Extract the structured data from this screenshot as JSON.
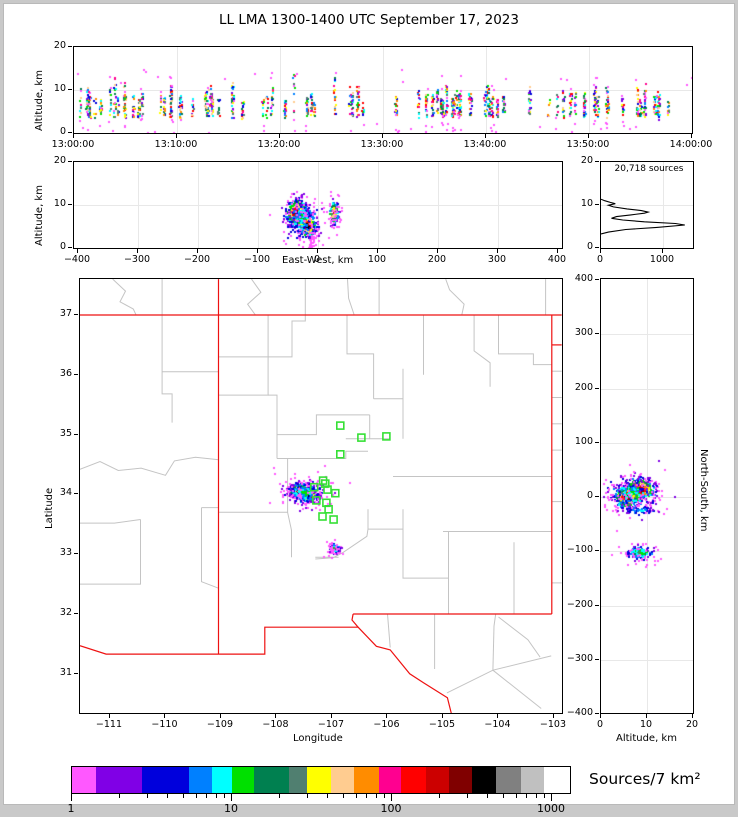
{
  "title": "LL LMA 1300-1400 UTC September 17, 2023",
  "axis_labels": {
    "alt": "Altitude, km",
    "ew": "East-West, km",
    "lat": "Latitude",
    "lon": "Longitude",
    "ns": "North-South, km"
  },
  "palette": [
    "#ff58ff",
    "#8000e6",
    "#0000dc",
    "#0080ff",
    "#00ffff",
    "#00e000",
    "#008050",
    "#507f70",
    "#ffff00",
    "#ffcc90",
    "#ff8c00",
    "#ff0090",
    "#ff0000",
    "#cc0000",
    "#800000",
    "#000000",
    "#808080",
    "#c0c0c0",
    "#ffffff"
  ],
  "colorbar": {
    "label": "Sources/7 km²",
    "tick_labels": [
      "1",
      "10",
      "100",
      "1000"
    ],
    "segment_widths": [
      24,
      46,
      47,
      23,
      20,
      22,
      35,
      18,
      24,
      23,
      25,
      22,
      25,
      23,
      23,
      24,
      25,
      23,
      25
    ],
    "log_range": [
      1,
      1290
    ]
  },
  "panels": {
    "time_height": {
      "xtick_labels": [
        "13:00:00",
        "13:10:00",
        "13:20:00",
        "13:30:00",
        "13:40:00",
        "13:50:00",
        "14:00:00"
      ],
      "ytick_labels": [
        "0",
        "10",
        "20"
      ],
      "ylim": [
        0,
        20
      ],
      "x_seconds": [
        0,
        3600
      ]
    },
    "east_west": {
      "xtick_labels": [
        "−400",
        "−300",
        "−200",
        "−100",
        "0",
        "100",
        "200",
        "300",
        "400"
      ],
      "xticks": [
        -400,
        -300,
        -200,
        -100,
        0,
        100,
        200,
        300,
        400
      ],
      "ytick_labels": [
        "0",
        "10",
        "20"
      ],
      "ylim": [
        0,
        20
      ]
    },
    "histogram": {
      "annotation": "20,718 sources",
      "xtick_labels": [
        "0",
        "1000"
      ],
      "xticks": [
        0,
        1000
      ],
      "ytick_labels": [
        "0",
        "10",
        "20"
      ]
    },
    "map": {
      "xtick_labels": [
        "−111",
        "−110",
        "−109",
        "−108",
        "−107",
        "−106",
        "−105",
        "−104",
        "−103"
      ],
      "xticks": [
        -111,
        -110,
        -109,
        -108,
        -107,
        -106,
        -105,
        -104,
        -103
      ],
      "ytick_labels": [
        "37",
        "36",
        "35",
        "34",
        "33",
        "32",
        "31"
      ],
      "yticks": [
        37,
        36,
        35,
        34,
        33,
        32,
        31
      ],
      "lon_range": [
        -111.54,
        -102.855
      ],
      "lat_range": [
        30.34,
        37.6
      ]
    },
    "north_south": {
      "ytick_labels": [
        "400",
        "300",
        "200",
        "100",
        "0",
        "−100",
        "−200",
        "−300",
        "−400"
      ],
      "yticks": [
        400,
        300,
        200,
        100,
        0,
        -100,
        -200,
        -300,
        -400
      ],
      "xtick_labels": [
        "0",
        "10",
        "20"
      ],
      "xticks": [
        0,
        10,
        20
      ],
      "ylim": [
        -400,
        400
      ]
    }
  },
  "map_layers": {
    "border_color": "#ee1111",
    "county_color": "#c4c4c4",
    "station_color": "#35e035",
    "stations": [
      [
        -106.85,
        35.15
      ],
      [
        -106.47,
        34.95
      ],
      [
        -106.02,
        34.97
      ],
      [
        -106.85,
        34.67
      ],
      [
        -107.16,
        34.23
      ],
      [
        -107.12,
        34.18
      ],
      [
        -107.32,
        34.12
      ],
      [
        -107.08,
        34.08
      ],
      [
        -106.94,
        34.02
      ],
      [
        -107.28,
        33.9
      ],
      [
        -107.1,
        33.86
      ],
      [
        -107.06,
        33.75
      ],
      [
        -107.17,
        33.63
      ],
      [
        -106.97,
        33.58
      ]
    ],
    "state_borders": [
      [
        [
          -109.045,
          37.6
        ],
        [
          -109.045,
          31.33
        ]
      ],
      [
        [
          -111.54,
          37.0
        ],
        [
          -102.86,
          37.0
        ]
      ],
      [
        [
          -103.04,
          37.0
        ],
        [
          -103.04,
          32.0
        ]
      ],
      [
        [
          -103.04,
          36.5
        ],
        [
          -102.86,
          36.5
        ]
      ],
      [
        [
          -103.04,
          32.0
        ],
        [
          -106.62,
          32.0
        ]
      ],
      [
        [
          -106.62,
          32.0
        ],
        [
          -106.64,
          31.9
        ],
        [
          -106.53,
          31.78
        ],
        [
          -108.21,
          31.78
        ],
        [
          -108.21,
          31.33
        ],
        [
          -109.045,
          31.33
        ],
        [
          -111.07,
          31.33
        ],
        [
          -111.54,
          31.47
        ]
      ],
      [
        [
          -106.53,
          31.78
        ],
        [
          -106.2,
          31.46
        ],
        [
          -105.95,
          31.4
        ],
        [
          -105.6,
          31.0
        ],
        [
          -105.35,
          30.85
        ],
        [
          -104.92,
          30.6
        ],
        [
          -104.85,
          30.34
        ]
      ]
    ],
    "county_lines": [
      [
        [
          -110.95,
          37.6
        ],
        [
          -110.72,
          37.4
        ],
        [
          -110.82,
          37.22
        ],
        [
          -110.58,
          37.1
        ],
        [
          -110.53,
          37.0
        ]
      ],
      [
        [
          -108.45,
          37.6
        ],
        [
          -108.28,
          37.38
        ],
        [
          -108.52,
          37.18
        ],
        [
          -108.38,
          37.0
        ]
      ],
      [
        [
          -107.48,
          37.6
        ],
        [
          -107.48,
          36.9
        ],
        [
          -107.72,
          36.9
        ],
        [
          -107.72,
          36.3
        ],
        [
          -109.04,
          36.3
        ]
      ],
      [
        [
          -106.72,
          37.6
        ],
        [
          -106.7,
          37.28
        ],
        [
          -106.6,
          37.0
        ]
      ],
      [
        [
          -106.15,
          37.6
        ],
        [
          -106.15,
          37.0
        ]
      ],
      [
        [
          -104.95,
          37.6
        ],
        [
          -104.88,
          37.42
        ],
        [
          -104.62,
          37.18
        ],
        [
          -104.66,
          37.0
        ]
      ],
      [
        [
          -103.15,
          37.6
        ],
        [
          -103.15,
          37.0
        ]
      ],
      [
        [
          -110.06,
          37.6
        ],
        [
          -110.06,
          35.68
        ],
        [
          -109.88,
          35.68
        ],
        [
          -109.88,
          35.2
        ]
      ],
      [
        [
          -110.06,
          36.05
        ],
        [
          -109.04,
          36.05
        ]
      ],
      [
        [
          -111.54,
          34.42
        ],
        [
          -111.18,
          34.55
        ],
        [
          -110.85,
          34.4
        ],
        [
          -110.44,
          34.44
        ],
        [
          -110.0,
          34.32
        ],
        [
          -109.84,
          34.56
        ],
        [
          -109.46,
          34.62
        ],
        [
          -109.04,
          34.58
        ]
      ],
      [
        [
          -111.54,
          33.52
        ],
        [
          -110.92,
          33.52
        ],
        [
          -110.45,
          33.58
        ]
      ],
      [
        [
          -110.45,
          33.58
        ],
        [
          -110.45,
          32.5
        ],
        [
          -111.54,
          32.5
        ]
      ],
      [
        [
          -109.35,
          33.78
        ],
        [
          -109.04,
          33.78
        ]
      ],
      [
        [
          -109.35,
          33.78
        ],
        [
          -109.35,
          32.54
        ],
        [
          -109.04,
          32.43
        ]
      ],
      [
        [
          -108.15,
          37.0
        ],
        [
          -108.15,
          35.66
        ],
        [
          -109.04,
          35.66
        ]
      ],
      [
        [
          -108.15,
          35.66
        ],
        [
          -107.99,
          35.66
        ],
        [
          -107.99,
          34.6
        ]
      ],
      [
        [
          -107.99,
          35.0
        ],
        [
          -107.28,
          35.0
        ],
        [
          -107.28,
          35.33
        ],
        [
          -106.32,
          35.33
        ]
      ],
      [
        [
          -106.32,
          35.33
        ],
        [
          -106.32,
          34.93
        ],
        [
          -105.95,
          34.93
        ]
      ],
      [
        [
          -106.75,
          34.93
        ],
        [
          -106.32,
          34.93
        ]
      ],
      [
        [
          -107.99,
          34.6
        ],
        [
          -106.75,
          34.6
        ],
        [
          -106.75,
          34.72
        ],
        [
          -106.35,
          34.72
        ]
      ],
      [
        [
          -107.8,
          34.6
        ],
        [
          -107.8,
          33.7
        ],
        [
          -107.73,
          33.4
        ],
        [
          -107.73,
          32.95
        ]
      ],
      [
        [
          -109.04,
          33.7
        ],
        [
          -107.8,
          33.7
        ]
      ],
      [
        [
          -107.3,
          32.95
        ],
        [
          -106.88,
          32.95
        ]
      ],
      [
        [
          -107.3,
          32.92
        ],
        [
          -106.98,
          32.94
        ],
        [
          -106.8,
          33.03
        ],
        [
          -106.37,
          33.3
        ],
        [
          -106.35,
          33.42
        ],
        [
          -106.35,
          33.75
        ]
      ],
      [
        [
          -106.35,
          33.42
        ],
        [
          -105.72,
          33.42
        ]
      ],
      [
        [
          -105.72,
          33.75
        ],
        [
          -105.72,
          32.6
        ],
        [
          -104.9,
          32.6
        ]
      ],
      [
        [
          -104.9,
          33.38
        ],
        [
          -104.9,
          32.0
        ]
      ],
      [
        [
          -103.72,
          33.2
        ],
        [
          -103.72,
          32.0
        ]
      ],
      [
        [
          -105.0,
          33.38
        ],
        [
          -103.04,
          33.38
        ]
      ],
      [
        [
          -105.9,
          34.3
        ],
        [
          -103.04,
          34.3
        ]
      ],
      [
        [
          -104.44,
          37.0
        ],
        [
          -104.44,
          36.4
        ],
        [
          -104.15,
          36.2
        ],
        [
          -104.15,
          35.8
        ]
      ],
      [
        [
          -105.35,
          37.0
        ],
        [
          -105.35,
          36.0
        ]
      ],
      [
        [
          -104.0,
          37.0
        ],
        [
          -104.0,
          36.35
        ],
        [
          -103.37,
          36.35
        ],
        [
          -103.37,
          36.17
        ],
        [
          -103.04,
          36.17
        ]
      ],
      [
        [
          -106.73,
          37.0
        ],
        [
          -106.73,
          36.35
        ],
        [
          -106.25,
          36.35
        ],
        [
          -106.25,
          35.6
        ]
      ],
      [
        [
          -105.72,
          36.1
        ],
        [
          -105.72,
          34.93
        ]
      ],
      [
        [
          -106.25,
          35.6
        ],
        [
          -105.72,
          35.6
        ]
      ],
      [
        [
          -102.86,
          36.06
        ],
        [
          -103.04,
          36.06
        ]
      ],
      [
        [
          -102.86,
          35.62
        ],
        [
          -103.04,
          35.62
        ]
      ],
      [
        [
          -102.86,
          35.18
        ],
        [
          -103.04,
          35.18
        ]
      ],
      [
        [
          -102.86,
          34.74
        ],
        [
          -103.04,
          34.74
        ]
      ],
      [
        [
          -102.86,
          33.88
        ],
        [
          -103.04,
          33.88
        ]
      ],
      [
        [
          -102.86,
          32.52
        ],
        [
          -103.04,
          32.52
        ]
      ],
      [
        [
          -104.93,
          30.68
        ],
        [
          -104.1,
          31.06
        ],
        [
          -103.05,
          31.3
        ]
      ],
      [
        [
          -104.1,
          31.06
        ],
        [
          -103.23,
          30.42
        ]
      ],
      [
        [
          -104.1,
          31.06
        ],
        [
          -104.08,
          31.8
        ],
        [
          -104.05,
          32.0
        ]
      ],
      [
        [
          -104.0,
          31.95
        ],
        [
          -103.47,
          31.57
        ],
        [
          -103.25,
          31.28
        ]
      ],
      [
        [
          -106.0,
          32.0
        ],
        [
          -105.95,
          31.44
        ]
      ],
      [
        [
          -105.15,
          32.0
        ],
        [
          -105.15,
          31.08
        ]
      ]
    ]
  },
  "chart_data": {
    "type": "scatter",
    "title": "LL LMA 1300-1400 UTC September 17, 2023",
    "total_sources_label": "20,718 sources",
    "density_scale": {
      "units": "Sources/7 km²",
      "log_ticks": [
        1,
        10,
        100,
        1000
      ]
    },
    "histogram_curve_count_vs_alt_km": [
      [
        0,
        11.35
      ],
      [
        60,
        11.0
      ],
      [
        150,
        10.6
      ],
      [
        230,
        10.3
      ],
      [
        120,
        9.95
      ],
      [
        200,
        9.55
      ],
      [
        420,
        9.1
      ],
      [
        650,
        8.7
      ],
      [
        760,
        8.35
      ],
      [
        700,
        8.1
      ],
      [
        480,
        7.7
      ],
      [
        250,
        7.3
      ],
      [
        170,
        6.9
      ],
      [
        350,
        6.5
      ],
      [
        700,
        6.1
      ],
      [
        1200,
        5.7
      ],
      [
        1352,
        5.35
      ],
      [
        900,
        4.8
      ],
      [
        400,
        4.3
      ],
      [
        120,
        3.7
      ],
      [
        0,
        3.25
      ]
    ],
    "clusters": {
      "map_lon_lat": [
        {
          "cx": -107.62,
          "cy": 34.08,
          "sx": 0.075,
          "sy": 0.05,
          "n": 420,
          "lo": 0,
          "hi": 17
        },
        {
          "cx": -107.42,
          "cy": 33.98,
          "sx": 0.06,
          "sy": 0.045,
          "n": 380,
          "lo": 0,
          "hi": 18
        },
        {
          "cx": -107.52,
          "cy": 34.04,
          "sx": 0.16,
          "sy": 0.1,
          "n": 200,
          "lo": 0,
          "hi": 5
        },
        {
          "cx": -107.5,
          "cy": 34.05,
          "sx": 0.3,
          "sy": 0.18,
          "n": 55,
          "lo": 0,
          "hi": 0
        },
        {
          "cx": -106.96,
          "cy": 33.11,
          "sx": 0.05,
          "sy": 0.038,
          "n": 110,
          "lo": 0,
          "hi": 7
        },
        {
          "cx": -106.96,
          "cy": 33.11,
          "sx": 0.1,
          "sy": 0.07,
          "n": 30,
          "lo": 0,
          "hi": 0
        }
      ],
      "east_west_km_alt": [
        {
          "cx": -37,
          "cy": 8.3,
          "sx": 8,
          "sy": 1.5,
          "n": 420,
          "lo": 0,
          "hi": 17
        },
        {
          "cx": -20,
          "cy": 5.4,
          "sx": 7,
          "sy": 1.2,
          "n": 380,
          "lo": 0,
          "hi": 18
        },
        {
          "cx": -28,
          "cy": 6.8,
          "sx": 13,
          "sy": 2.6,
          "n": 200,
          "lo": 0,
          "hi": 5
        },
        {
          "cx": -24,
          "cy": 6.2,
          "sx": 18,
          "sy": 3.4,
          "n": 60,
          "lo": 0,
          "hi": 0
        },
        {
          "cx": -12,
          "cy": 1.8,
          "sx": 5,
          "sy": 1.1,
          "n": 25,
          "lo": 0,
          "hi": 0
        },
        {
          "cx": 25,
          "cy": 8.4,
          "sx": 4,
          "sy": 1.4,
          "n": 115,
          "lo": 0,
          "hi": 12
        },
        {
          "cx": 25,
          "cy": 8.4,
          "sx": 7,
          "sy": 2.4,
          "n": 30,
          "lo": 0,
          "hi": 0
        }
      ],
      "alt_km_north_south": [
        {
          "cx": 8.3,
          "cy": 15,
          "sx": 1.5,
          "sy": 10,
          "n": 420,
          "lo": 0,
          "hi": 17
        },
        {
          "cx": 5.4,
          "cy": 2,
          "sx": 1.2,
          "sy": 9,
          "n": 380,
          "lo": 0,
          "hi": 18
        },
        {
          "cx": 6.8,
          "cy": 8,
          "sx": 2.6,
          "sy": 17,
          "n": 200,
          "lo": 0,
          "hi": 5
        },
        {
          "cx": 6.2,
          "cy": 5,
          "sx": 3.4,
          "sy": 25,
          "n": 60,
          "lo": 0,
          "hi": 0
        },
        {
          "cx": 8.5,
          "cy": -23,
          "sx": 2.1,
          "sy": 3.5,
          "n": 55,
          "lo": 0,
          "hi": 4
        },
        {
          "cx": 8.2,
          "cy": -101,
          "sx": 1.5,
          "sy": 6,
          "n": 115,
          "lo": 0,
          "hi": 7
        },
        {
          "cx": 8.2,
          "cy": -101,
          "sx": 2.6,
          "sy": 11,
          "n": 30,
          "lo": 0,
          "hi": 0
        }
      ],
      "time_columns": {
        "seed": 20718,
        "count": 88,
        "alt_base": [
          3.3,
          4.6
        ],
        "alt_top": [
          7.5,
          11.5
        ],
        "pts_range": [
          8,
          26
        ],
        "tall_chance": 0.1,
        "stray_chance": 0.35,
        "loner_points": 40
      }
    }
  }
}
